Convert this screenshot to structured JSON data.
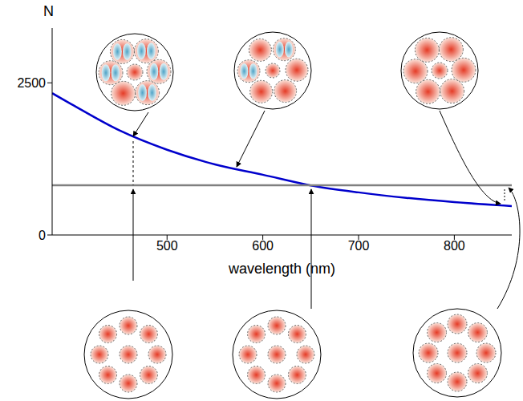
{
  "chart_data": {
    "type": "line",
    "x_label": "wavelength (nm)",
    "y_label": "N",
    "xlim": [
      380,
      860
    ],
    "xticks": [
      500,
      600,
      700,
      800
    ],
    "ylim": [
      0,
      3400
    ],
    "yticks": [
      0,
      2500
    ],
    "grid": false,
    "series": [
      {
        "color": "#0000cc",
        "x": [
          380,
          400,
          450,
          500,
          550,
          600,
          650,
          700,
          750,
          800,
          860
        ],
        "values": [
          2330,
          2150,
          1720,
          1400,
          1160,
          990,
          815,
          700,
          610,
          540,
          475
        ]
      },
      {
        "color": "#808080",
        "x": [
          380,
          860
        ],
        "values": [
          818,
          818
        ]
      }
    ]
  }
}
